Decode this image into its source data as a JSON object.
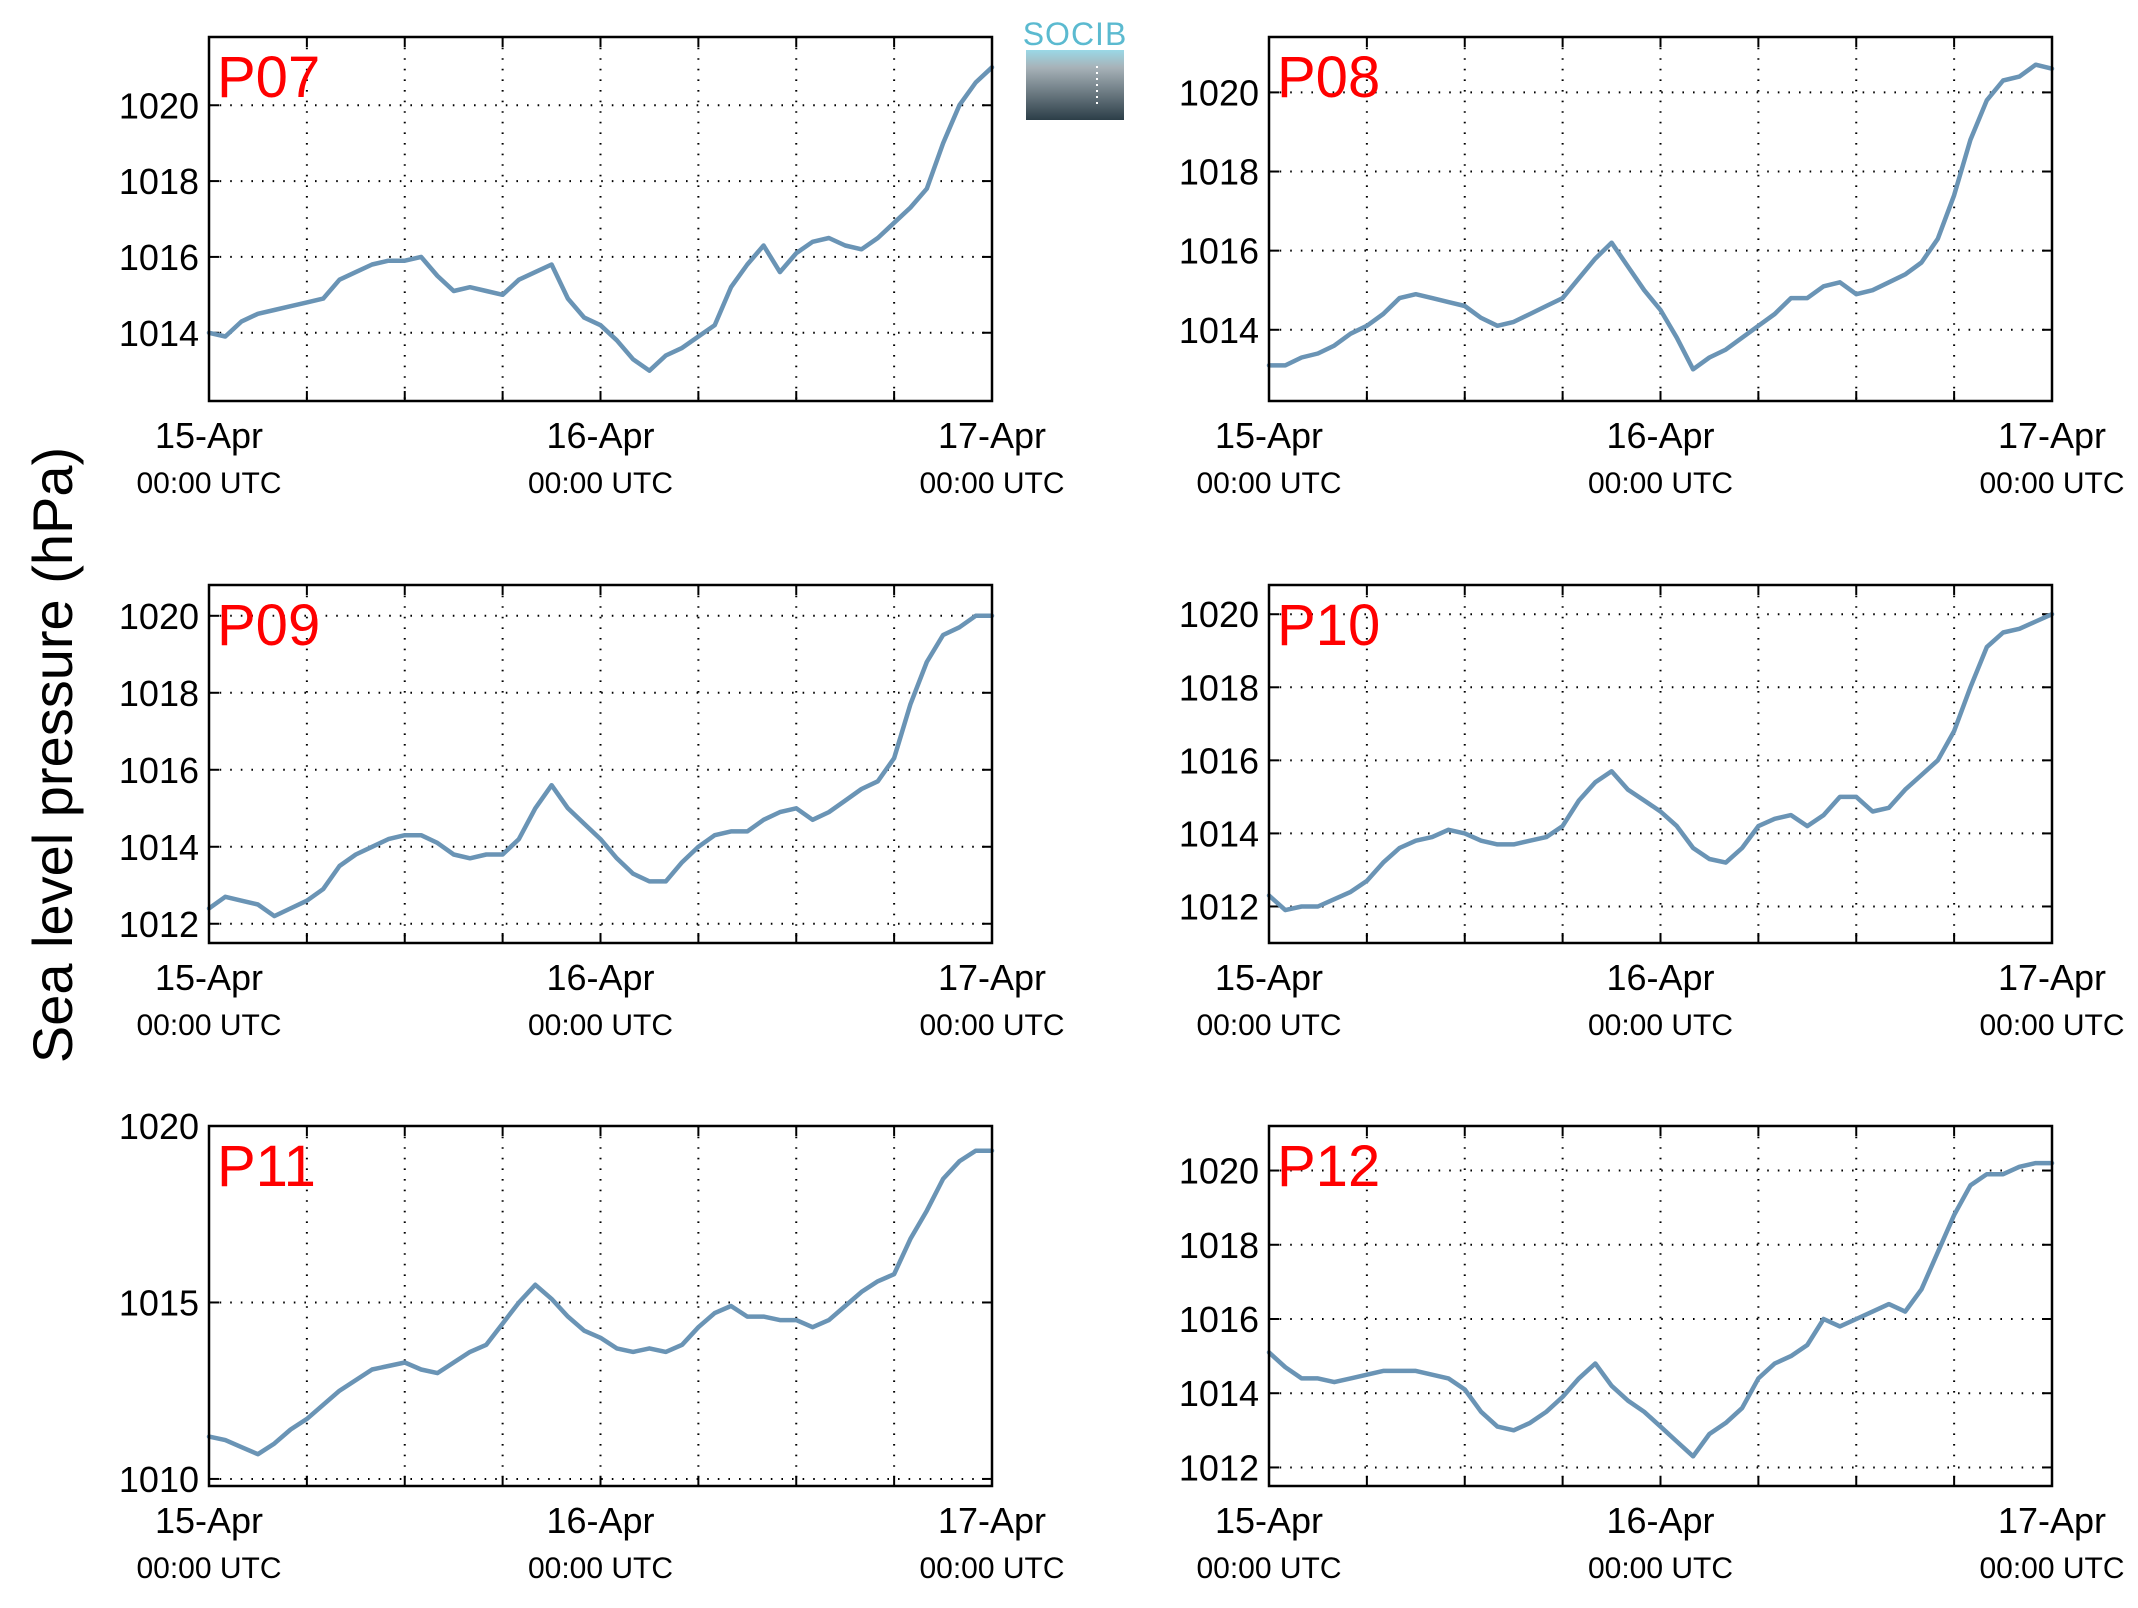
{
  "ylabel": "Sea level pressure (hPa)",
  "logo": {
    "text": "SOCIB"
  },
  "colors": {
    "line": "#6a94b5",
    "panel_label": "#ff0000",
    "axis": "#000000"
  },
  "x_tick_dates": [
    "15-Apr",
    "16-Apr",
    "17-Apr"
  ],
  "x_tick_times": [
    "00:00 UTC",
    "00:00 UTC",
    "00:00 UTC"
  ],
  "chart_data": [
    {
      "type": "line",
      "label": "P07",
      "xlim": [
        0,
        48
      ],
      "ylim": [
        1012.2,
        1021.8
      ],
      "yticks": [
        1014,
        1016,
        1018,
        1020
      ],
      "grid": true,
      "x": [
        0,
        1,
        2,
        3,
        4,
        5,
        6,
        7,
        8,
        9,
        10,
        11,
        12,
        13,
        14,
        15,
        16,
        17,
        18,
        19,
        20,
        21,
        22,
        23,
        24,
        25,
        26,
        27,
        28,
        29,
        30,
        31,
        32,
        33,
        34,
        35,
        36,
        37,
        38,
        39,
        40,
        41,
        42,
        43,
        44,
        45,
        46,
        47,
        48
      ],
      "values": [
        1014.0,
        1013.9,
        1014.3,
        1014.5,
        1014.6,
        1014.7,
        1014.8,
        1014.9,
        1015.4,
        1015.6,
        1015.8,
        1015.9,
        1015.9,
        1016.0,
        1015.5,
        1015.1,
        1015.2,
        1015.1,
        1015.0,
        1015.4,
        1015.6,
        1015.8,
        1014.9,
        1014.4,
        1014.2,
        1013.8,
        1013.3,
        1013.0,
        1013.4,
        1013.6,
        1013.9,
        1014.2,
        1015.2,
        1015.8,
        1016.3,
        1015.6,
        1016.1,
        1016.4,
        1016.5,
        1016.3,
        1016.2,
        1016.5,
        1016.9,
        1017.3,
        1017.8,
        1019.0,
        1020.0,
        1020.6,
        1021.0
      ]
    },
    {
      "type": "line",
      "label": "P08",
      "xlim": [
        0,
        48
      ],
      "ylim": [
        1012.2,
        1021.4
      ],
      "yticks": [
        1014,
        1016,
        1018,
        1020
      ],
      "grid": true,
      "x": [
        0,
        1,
        2,
        3,
        4,
        5,
        6,
        7,
        8,
        9,
        10,
        11,
        12,
        13,
        14,
        15,
        16,
        17,
        18,
        19,
        20,
        21,
        22,
        23,
        24,
        25,
        26,
        27,
        28,
        29,
        30,
        31,
        32,
        33,
        34,
        35,
        36,
        37,
        38,
        39,
        40,
        41,
        42,
        43,
        44,
        45,
        46,
        47,
        48
      ],
      "values": [
        1013.1,
        1013.1,
        1013.3,
        1013.4,
        1013.6,
        1013.9,
        1014.1,
        1014.4,
        1014.8,
        1014.9,
        1014.8,
        1014.7,
        1014.6,
        1014.3,
        1014.1,
        1014.2,
        1014.4,
        1014.6,
        1014.8,
        1015.3,
        1015.8,
        1016.2,
        1015.6,
        1015.0,
        1014.5,
        1013.8,
        1013.0,
        1013.3,
        1013.5,
        1013.8,
        1014.1,
        1014.4,
        1014.8,
        1014.8,
        1015.1,
        1015.2,
        1014.9,
        1015.0,
        1015.2,
        1015.4,
        1015.7,
        1016.3,
        1017.4,
        1018.8,
        1019.8,
        1020.3,
        1020.4,
        1020.7,
        1020.6
      ]
    },
    {
      "type": "line",
      "label": "P09",
      "xlim": [
        0,
        48
      ],
      "ylim": [
        1011.5,
        1020.8
      ],
      "yticks": [
        1012,
        1014,
        1016,
        1018,
        1020
      ],
      "grid": true,
      "x": [
        0,
        1,
        2,
        3,
        4,
        5,
        6,
        7,
        8,
        9,
        10,
        11,
        12,
        13,
        14,
        15,
        16,
        17,
        18,
        19,
        20,
        21,
        22,
        23,
        24,
        25,
        26,
        27,
        28,
        29,
        30,
        31,
        32,
        33,
        34,
        35,
        36,
        37,
        38,
        39,
        40,
        41,
        42,
        43,
        44,
        45,
        46,
        47,
        48
      ],
      "values": [
        1012.4,
        1012.7,
        1012.6,
        1012.5,
        1012.2,
        1012.4,
        1012.6,
        1012.9,
        1013.5,
        1013.8,
        1014.0,
        1014.2,
        1014.3,
        1014.3,
        1014.1,
        1013.8,
        1013.7,
        1013.8,
        1013.8,
        1014.2,
        1015.0,
        1015.6,
        1015.0,
        1014.6,
        1014.2,
        1013.7,
        1013.3,
        1013.1,
        1013.1,
        1013.6,
        1014.0,
        1014.3,
        1014.4,
        1014.4,
        1014.7,
        1014.9,
        1015.0,
        1014.7,
        1014.9,
        1015.2,
        1015.5,
        1015.7,
        1016.3,
        1017.7,
        1018.8,
        1019.5,
        1019.7,
        1020.0,
        1020.0
      ]
    },
    {
      "type": "line",
      "label": "P10",
      "xlim": [
        0,
        48
      ],
      "ylim": [
        1011.0,
        1020.8
      ],
      "yticks": [
        1012,
        1014,
        1016,
        1018,
        1020
      ],
      "grid": true,
      "x": [
        0,
        1,
        2,
        3,
        4,
        5,
        6,
        7,
        8,
        9,
        10,
        11,
        12,
        13,
        14,
        15,
        16,
        17,
        18,
        19,
        20,
        21,
        22,
        23,
        24,
        25,
        26,
        27,
        28,
        29,
        30,
        31,
        32,
        33,
        34,
        35,
        36,
        37,
        38,
        39,
        40,
        41,
        42,
        43,
        44,
        45,
        46,
        47,
        48
      ],
      "values": [
        1012.3,
        1011.9,
        1012.0,
        1012.0,
        1012.2,
        1012.4,
        1012.7,
        1013.2,
        1013.6,
        1013.8,
        1013.9,
        1014.1,
        1014.0,
        1013.8,
        1013.7,
        1013.7,
        1013.8,
        1013.9,
        1014.2,
        1014.9,
        1015.4,
        1015.7,
        1015.2,
        1014.9,
        1014.6,
        1014.2,
        1013.6,
        1013.3,
        1013.2,
        1013.6,
        1014.2,
        1014.4,
        1014.5,
        1014.2,
        1014.5,
        1015.0,
        1015.0,
        1014.6,
        1014.7,
        1015.2,
        1015.6,
        1016.0,
        1016.8,
        1018.0,
        1019.1,
        1019.5,
        1019.6,
        1019.8,
        1020.0
      ]
    },
    {
      "type": "line",
      "label": "P11",
      "xlim": [
        0,
        48
      ],
      "ylim": [
        1009.8,
        1020.0
      ],
      "yticks": [
        1010,
        1015,
        1020
      ],
      "grid": true,
      "x": [
        0,
        1,
        2,
        3,
        4,
        5,
        6,
        7,
        8,
        9,
        10,
        11,
        12,
        13,
        14,
        15,
        16,
        17,
        18,
        19,
        20,
        21,
        22,
        23,
        24,
        25,
        26,
        27,
        28,
        29,
        30,
        31,
        32,
        33,
        34,
        35,
        36,
        37,
        38,
        39,
        40,
        41,
        42,
        43,
        44,
        45,
        46,
        47,
        48
      ],
      "values": [
        1011.2,
        1011.1,
        1010.9,
        1010.7,
        1011.0,
        1011.4,
        1011.7,
        1012.1,
        1012.5,
        1012.8,
        1013.1,
        1013.2,
        1013.3,
        1013.1,
        1013.0,
        1013.3,
        1013.6,
        1013.8,
        1014.4,
        1015.0,
        1015.5,
        1015.1,
        1014.6,
        1014.2,
        1014.0,
        1013.7,
        1013.6,
        1013.7,
        1013.6,
        1013.8,
        1014.3,
        1014.7,
        1014.9,
        1014.6,
        1014.6,
        1014.5,
        1014.5,
        1014.3,
        1014.5,
        1014.9,
        1015.3,
        1015.6,
        1015.8,
        1016.8,
        1017.6,
        1018.5,
        1019.0,
        1019.3,
        1019.3
      ]
    },
    {
      "type": "line",
      "label": "P12",
      "xlim": [
        0,
        48
      ],
      "ylim": [
        1011.5,
        1021.2
      ],
      "yticks": [
        1012,
        1014,
        1016,
        1018,
        1020
      ],
      "grid": true,
      "x": [
        0,
        1,
        2,
        3,
        4,
        5,
        6,
        7,
        8,
        9,
        10,
        11,
        12,
        13,
        14,
        15,
        16,
        17,
        18,
        19,
        20,
        21,
        22,
        23,
        24,
        25,
        26,
        27,
        28,
        29,
        30,
        31,
        32,
        33,
        34,
        35,
        36,
        37,
        38,
        39,
        40,
        41,
        42,
        43,
        44,
        45,
        46,
        47,
        48
      ],
      "values": [
        1015.1,
        1014.7,
        1014.4,
        1014.4,
        1014.3,
        1014.4,
        1014.5,
        1014.6,
        1014.6,
        1014.6,
        1014.5,
        1014.4,
        1014.1,
        1013.5,
        1013.1,
        1013.0,
        1013.2,
        1013.5,
        1013.9,
        1014.4,
        1014.8,
        1014.2,
        1013.8,
        1013.5,
        1013.1,
        1012.7,
        1012.3,
        1012.9,
        1013.2,
        1013.6,
        1014.4,
        1014.8,
        1015.0,
        1015.3,
        1016.0,
        1015.8,
        1016.0,
        1016.2,
        1016.4,
        1016.2,
        1016.8,
        1017.8,
        1018.8,
        1019.6,
        1019.9,
        1019.9,
        1020.1,
        1020.2,
        1020.2
      ]
    }
  ]
}
